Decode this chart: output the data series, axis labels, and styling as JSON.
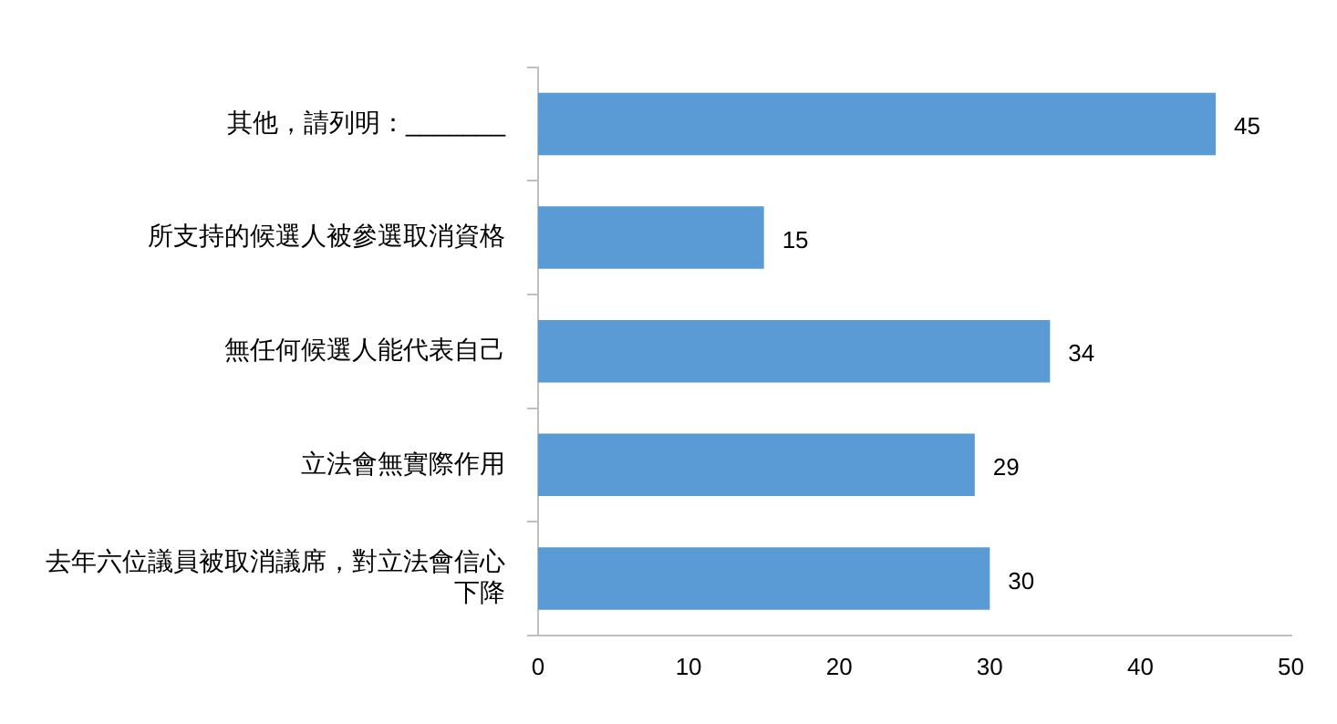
{
  "chart_data": {
    "type": "bar",
    "orientation": "horizontal",
    "categories": [
      "其他，請列明：_______",
      "所支持的候選人被參選取消資格",
      "無任何候選人能代表自己",
      "立法會無實際作用",
      "去年六位議員被取消議席，對立法會信心下降"
    ],
    "values": [
      45,
      15,
      34,
      29,
      30
    ],
    "color": "#5b9bd5",
    "xlim": [
      0,
      50
    ],
    "xticks": [
      0,
      10,
      20,
      30,
      40,
      50
    ],
    "grid": false,
    "data_labels": true,
    "legend": false
  }
}
